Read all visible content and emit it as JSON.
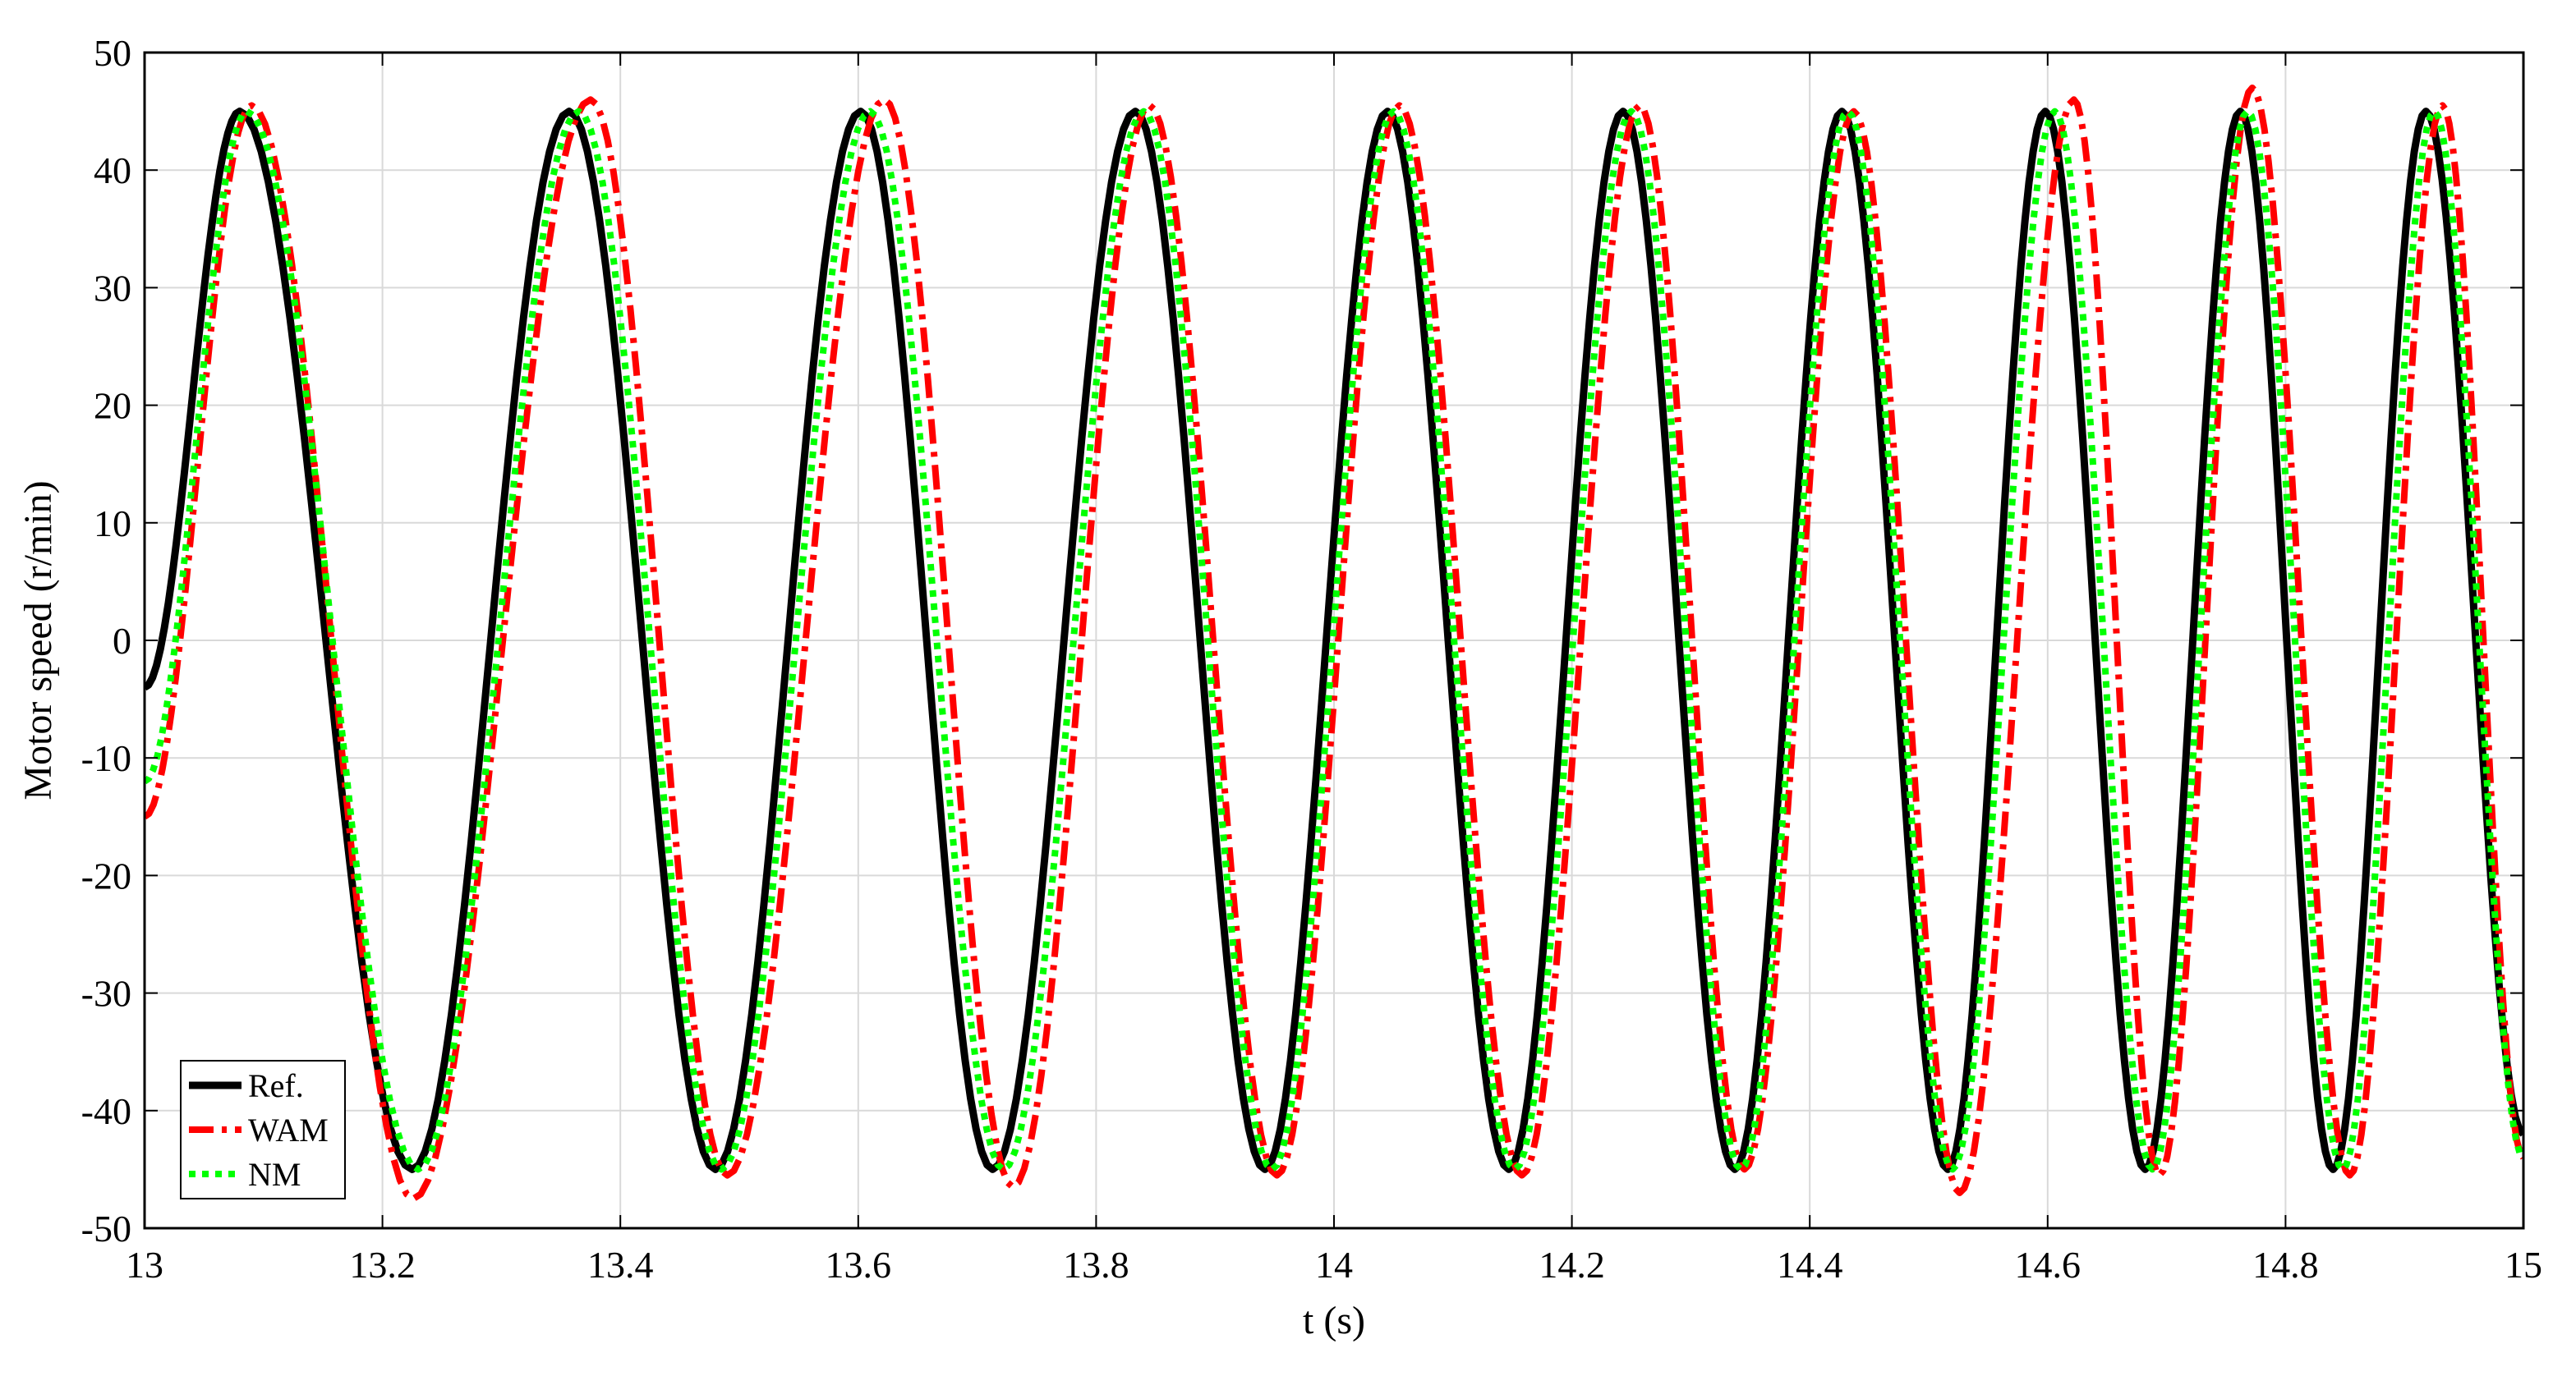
{
  "chart_data": {
    "type": "line",
    "title": "",
    "xlabel": "t (s)",
    "ylabel": "Motor speed (r/min)",
    "xlim": [
      13,
      15
    ],
    "ylim": [
      -50,
      50
    ],
    "xticks": [
      13,
      13.2,
      13.4,
      13.6,
      13.8,
      14,
      14.2,
      14.4,
      14.6,
      14.8,
      15
    ],
    "xtick_labels": [
      "13",
      "13.2",
      "13.4",
      "13.6",
      "13.8",
      "14",
      "14.2",
      "14.4",
      "14.6",
      "14.8",
      "15"
    ],
    "yticks": [
      50,
      40,
      30,
      20,
      10,
      0,
      -10,
      -20,
      -30,
      -40,
      -50
    ],
    "ytick_labels": [
      "50",
      "40",
      "30",
      "20",
      "10",
      "0",
      "-10",
      "-20",
      "-30",
      "-40",
      "-50"
    ],
    "grid": true,
    "legend_position": "bottom-left",
    "series": [
      {
        "name": "Ref.",
        "color": "#000000",
        "style": "solid",
        "x": [
          13.0,
          13.08,
          13.225,
          13.357,
          13.48,
          13.602,
          13.713,
          13.833,
          13.942,
          14.045,
          14.147,
          14.243,
          14.337,
          14.427,
          14.516,
          14.598,
          14.682,
          14.762,
          14.84,
          14.918,
          15.0
        ],
        "y": [
          -4,
          45,
          -45,
          45,
          -45,
          45,
          -45,
          45,
          -45,
          45,
          -45,
          45,
          -45,
          45,
          -45,
          45,
          -45,
          45,
          -45,
          45,
          -42
        ]
      },
      {
        "name": "WAM",
        "color": "#ff0000",
        "style": "dash-dot",
        "x": [
          13.0,
          13.09,
          13.226,
          13.375,
          13.49,
          13.622,
          13.73,
          13.845,
          13.952,
          14.055,
          14.158,
          14.257,
          14.345,
          14.437,
          14.526,
          14.622,
          14.694,
          14.772,
          14.854,
          14.932,
          15.0
        ],
        "y": [
          -15,
          45.5,
          -47.5,
          46,
          -45.5,
          46,
          -46.5,
          45.5,
          -45.5,
          45.5,
          -45.5,
          45.5,
          -45,
          45,
          -47,
          46,
          -45.5,
          47,
          -45.5,
          45.5,
          -44
        ]
      },
      {
        "name": "NM",
        "color": "#00ff00",
        "style": "dotted",
        "x": [
          13.0,
          13.086,
          13.23,
          13.365,
          13.485,
          13.61,
          13.722,
          13.84,
          13.948,
          14.05,
          14.152,
          14.25,
          14.342,
          14.432,
          14.52,
          14.606,
          14.688,
          14.768,
          14.848,
          14.925,
          15.0
        ],
        "y": [
          -12,
          45,
          -45,
          45,
          -45,
          45,
          -45,
          45,
          -45,
          45,
          -45,
          45,
          -45,
          45,
          -45,
          45,
          -45,
          45,
          -45,
          45,
          -44
        ]
      }
    ]
  }
}
